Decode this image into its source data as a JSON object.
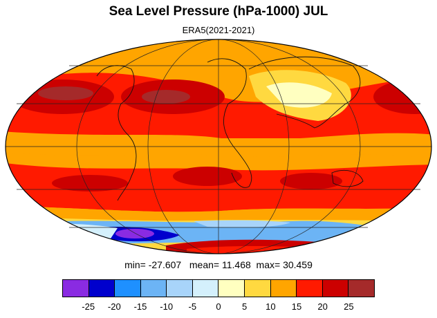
{
  "title": "Sea Level Pressure (hPa-1000) JUL",
  "subtitle": "ERA5(2021-2021)",
  "stats": {
    "min_label": "min=",
    "min_value": "-27.607",
    "mean_label": "mean=",
    "mean_value": "11.468",
    "max_label": "max=",
    "max_value": "30.459"
  },
  "colorbar": {
    "colors": [
      "#8a2be2",
      "#0000cd",
      "#1e90ff",
      "#6cb4f5",
      "#a8d4fa",
      "#d4f0fc",
      "#ffffc0",
      "#ffd940",
      "#ffa500",
      "#ff1a00",
      "#cc0000",
      "#a52a2a"
    ],
    "tick_labels": [
      "-25",
      "-20",
      "-15",
      "-10",
      "-5",
      "0",
      "5",
      "10",
      "15",
      "20",
      "25"
    ]
  },
  "map": {
    "projection": "Mollweide",
    "colors": {
      "high": "#cc0000",
      "strong": "#ff1a00",
      "moderate": "#ffa500",
      "mild": "#ffd940",
      "weak": "#ffffc0",
      "zero": "#d4f0fc",
      "low1": "#a8d4fa",
      "low2": "#6cb4f5",
      "low3": "#1e90ff",
      "low4": "#0000cd",
      "low5": "#8a2be2",
      "very_high": "#a52a2a"
    }
  }
}
